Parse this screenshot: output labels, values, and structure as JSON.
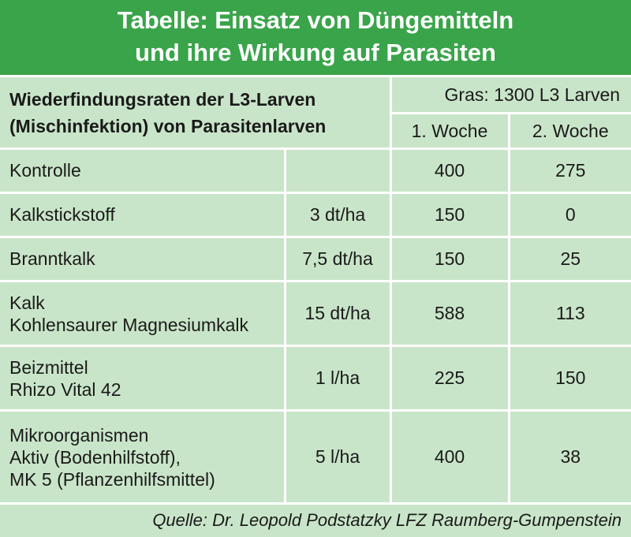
{
  "title": {
    "line1": "Tabelle: Einsatz von Düngemitteln",
    "line2": "und ihre Wirkung auf Parasiten"
  },
  "header": {
    "description_line1": "Wiederfindungsraten der L3-Larven",
    "description_line2": "(Mischinfektion) von Parasitenlarven",
    "group": "Gras: 1300 L3 Larven",
    "col_week1": "1. Woche",
    "col_week2": "2. Woche"
  },
  "rows": [
    {
      "name_lines": [
        "Kontrolle"
      ],
      "dose": "",
      "week1": "400",
      "week2": "275"
    },
    {
      "name_lines": [
        "Kalkstickstoff"
      ],
      "dose": "3 dt/ha",
      "week1": "150",
      "week2": "0"
    },
    {
      "name_lines": [
        "Branntkalk"
      ],
      "dose": "7,5 dt/ha",
      "week1": "150",
      "week2": "25"
    },
    {
      "name_lines": [
        "Kalk",
        "Kohlensaurer Magnesiumkalk"
      ],
      "dose": "15 dt/ha",
      "week1": "588",
      "week2": "113"
    },
    {
      "name_lines": [
        "Beizmittel",
        "Rhizo Vital 42"
      ],
      "dose": "1 l/ha",
      "week1": "225",
      "week2": "150"
    },
    {
      "name_lines": [
        "Mikroorganismen",
        "Aktiv (Bodenhilfstoff),",
        "MK 5 (Pflanzenhilfsmittel)"
      ],
      "dose": "5 l/ha",
      "week1": "400",
      "week2": "38"
    }
  ],
  "source": "Quelle: Dr. Leopold Podstatzky LFZ Raumberg-Gumpenstein"
}
